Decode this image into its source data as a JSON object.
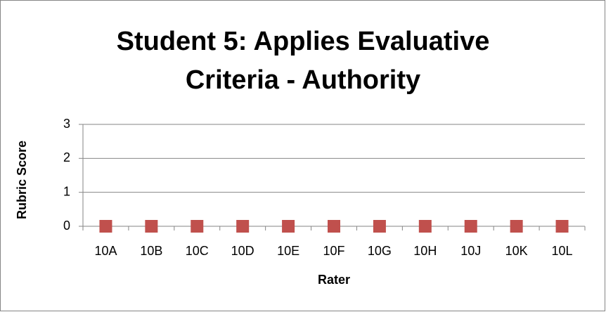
{
  "chart_data": {
    "type": "scatter",
    "title": "Student 5: Applies Evaluative Criteria - Authority",
    "x_label": "Rater",
    "y_label": "Rubric Score",
    "categories": [
      "10A",
      "10B",
      "10C",
      "10D",
      "10E",
      "10F",
      "10G",
      "10H",
      "10J",
      "10K",
      "10L"
    ],
    "values": [
      0,
      0,
      0,
      0,
      0,
      0,
      0,
      0,
      0,
      0,
      0
    ],
    "color": "#c0504d",
    "ylim": [
      0,
      3
    ],
    "yticks": [
      0,
      1,
      2,
      3
    ],
    "grid": true
  }
}
